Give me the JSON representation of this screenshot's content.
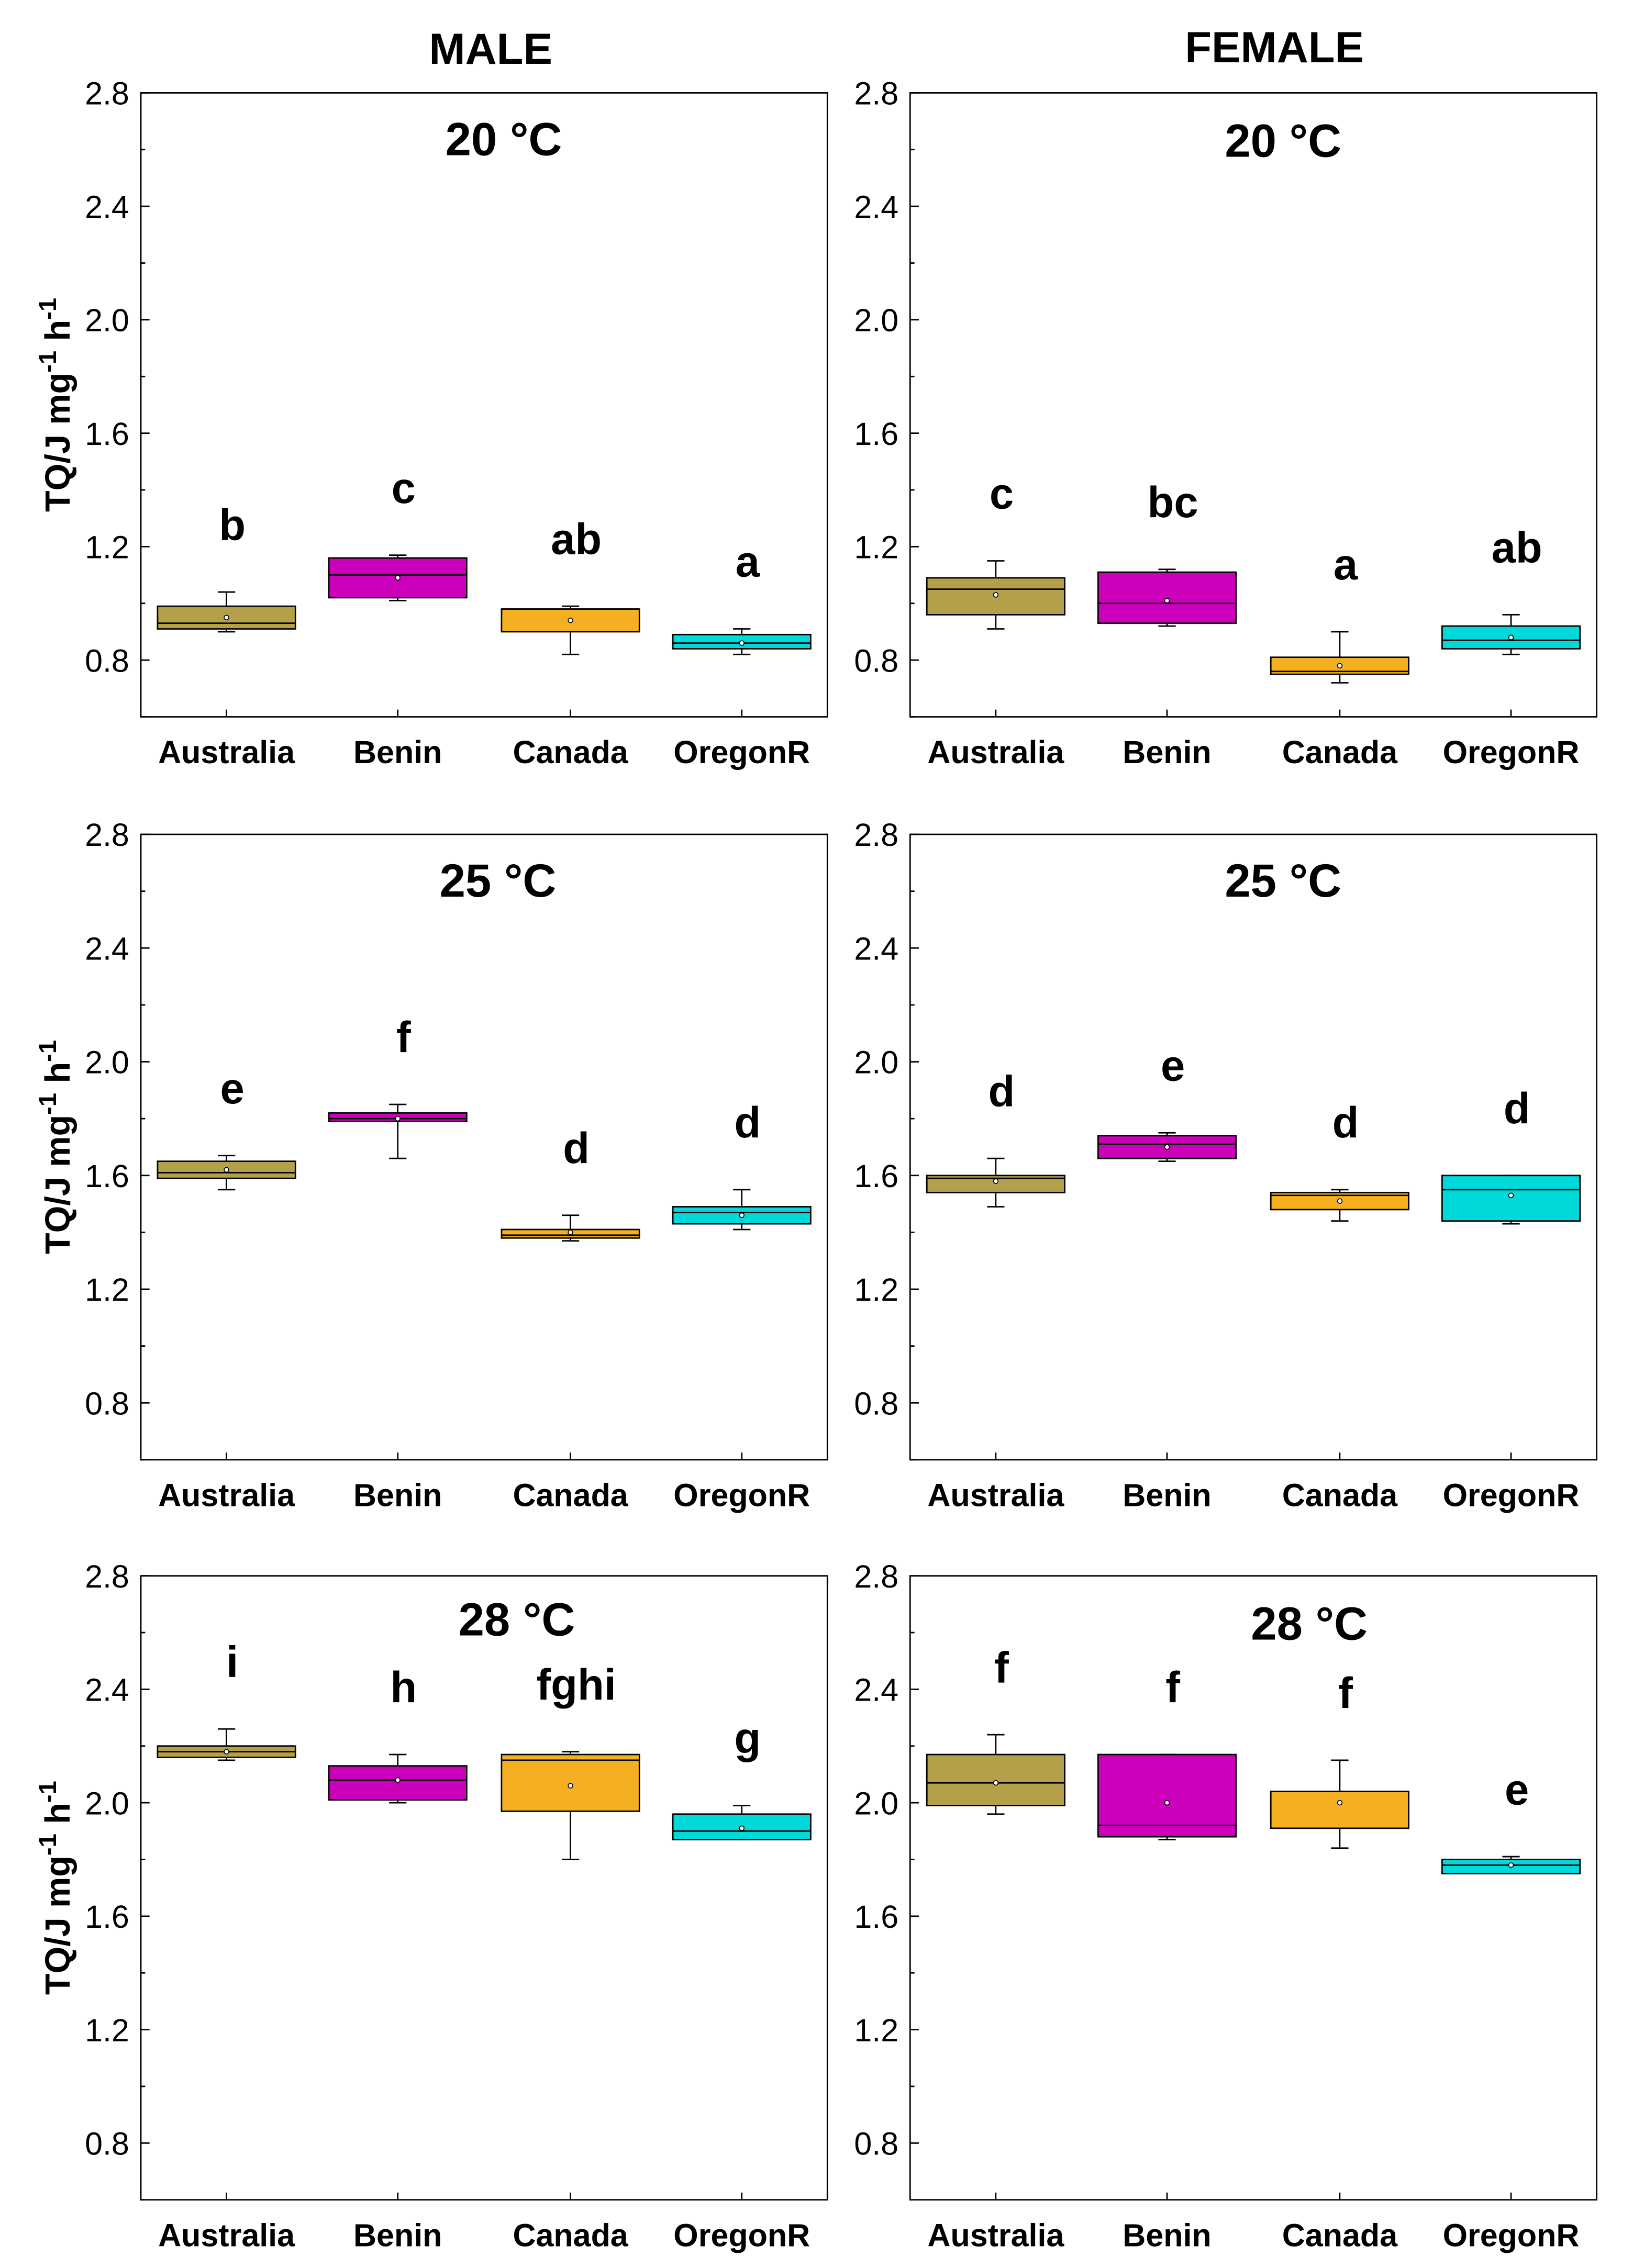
{
  "columns": [
    "MALE",
    "FEMALE"
  ],
  "colors": {
    "Australia": "#B5A04A",
    "Benin": "#CC00BB",
    "Canada": "#F5B021",
    "OregonR": "#00D9D9"
  },
  "chart_data": [
    {
      "type": "box",
      "sex": "MALE",
      "title": "20 °C",
      "ylabel": "TQ/J mg-1 h-1",
      "ylim": [
        0.6,
        2.8
      ],
      "yticks": [
        "0.8",
        "1.2",
        "1.6",
        "2.0",
        "2.4",
        "2.8"
      ],
      "categories": [
        "Australia",
        "Benin",
        "Canada",
        "OregonR"
      ],
      "boxes": [
        {
          "min": 0.9,
          "q1": 0.91,
          "median": 0.93,
          "q3": 0.99,
          "max": 1.04,
          "mean": 0.95,
          "letter": "b"
        },
        {
          "min": 1.01,
          "q1": 1.02,
          "median": 1.1,
          "q3": 1.16,
          "max": 1.17,
          "mean": 1.09,
          "letter": "c"
        },
        {
          "min": 0.82,
          "q1": 0.9,
          "median": 0.98,
          "q3": 0.98,
          "max": 0.99,
          "mean": 0.94,
          "letter": "ab"
        },
        {
          "min": 0.82,
          "q1": 0.84,
          "median": 0.86,
          "q3": 0.89,
          "max": 0.91,
          "mean": 0.86,
          "letter": "a"
        }
      ]
    },
    {
      "type": "box",
      "sex": "FEMALE",
      "title": "20 °C",
      "ylabel": "",
      "ylim": [
        0.6,
        2.8
      ],
      "yticks": [
        "0.8",
        "1.2",
        "1.6",
        "2.0",
        "2.4",
        "2.8"
      ],
      "categories": [
        "Australia",
        "Benin",
        "Canada",
        "OregonR"
      ],
      "boxes": [
        {
          "min": 0.91,
          "q1": 0.96,
          "median": 1.05,
          "q3": 1.09,
          "max": 1.15,
          "mean": 1.03,
          "letter": "c"
        },
        {
          "min": 0.92,
          "q1": 0.93,
          "median": 1.0,
          "q3": 1.11,
          "max": 1.12,
          "mean": 1.01,
          "letter": "bc"
        },
        {
          "min": 0.72,
          "q1": 0.75,
          "median": 0.76,
          "q3": 0.81,
          "max": 0.9,
          "mean": 0.78,
          "letter": "a"
        },
        {
          "min": 0.82,
          "q1": 0.84,
          "median": 0.87,
          "q3": 0.92,
          "max": 0.96,
          "mean": 0.88,
          "letter": "ab"
        }
      ]
    },
    {
      "type": "box",
      "sex": "MALE",
      "title": "25 °C",
      "ylabel": "TQ/J mg-1 h-1",
      "ylim": [
        0.6,
        2.8
      ],
      "yticks": [
        "0.8",
        "1.2",
        "1.6",
        "2.0",
        "2.4",
        "2.8"
      ],
      "categories": [
        "Australia",
        "Benin",
        "Canada",
        "OregonR"
      ],
      "boxes": [
        {
          "min": 1.55,
          "q1": 1.59,
          "median": 1.61,
          "q3": 1.65,
          "max": 1.67,
          "mean": 1.62,
          "letter": "e"
        },
        {
          "min": 1.66,
          "q1": 1.79,
          "median": 1.8,
          "q3": 1.82,
          "max": 1.85,
          "mean": 1.8,
          "letter": "f"
        },
        {
          "min": 1.37,
          "q1": 1.38,
          "median": 1.39,
          "q3": 1.41,
          "max": 1.46,
          "mean": 1.4,
          "letter": "d"
        },
        {
          "min": 1.41,
          "q1": 1.43,
          "median": 1.47,
          "q3": 1.49,
          "max": 1.55,
          "mean": 1.46,
          "letter": "d"
        }
      ]
    },
    {
      "type": "box",
      "sex": "FEMALE",
      "title": "25 °C",
      "ylabel": "",
      "ylim": [
        0.6,
        2.8
      ],
      "yticks": [
        "0.8",
        "1.2",
        "1.6",
        "2.0",
        "2.4",
        "2.8"
      ],
      "categories": [
        "Australia",
        "Benin",
        "Canada",
        "OregonR"
      ],
      "boxes": [
        {
          "min": 1.49,
          "q1": 1.54,
          "median": 1.59,
          "q3": 1.6,
          "max": 1.66,
          "mean": 1.58,
          "letter": "d"
        },
        {
          "min": 1.65,
          "q1": 1.66,
          "median": 1.71,
          "q3": 1.74,
          "max": 1.75,
          "mean": 1.7,
          "letter": "e"
        },
        {
          "min": 1.44,
          "q1": 1.48,
          "median": 1.53,
          "q3": 1.54,
          "max": 1.55,
          "mean": 1.51,
          "letter": "d"
        },
        {
          "min": 1.43,
          "q1": 1.44,
          "median": 1.55,
          "q3": 1.6,
          "max": 1.6,
          "mean": 1.53,
          "letter": "d"
        }
      ]
    },
    {
      "type": "box",
      "sex": "MALE",
      "title": "28 °C",
      "ylabel": "TQ/J mg-1 h-1",
      "ylim": [
        0.6,
        2.8
      ],
      "yticks": [
        "0.8",
        "1.2",
        "1.6",
        "2.0",
        "2.4",
        "2.8"
      ],
      "categories": [
        "Australia",
        "Benin",
        "Canada",
        "OregonR"
      ],
      "boxes": [
        {
          "min": 2.15,
          "q1": 2.16,
          "median": 2.18,
          "q3": 2.2,
          "max": 2.26,
          "mean": 2.18,
          "letter": "i"
        },
        {
          "min": 2.0,
          "q1": 2.01,
          "median": 2.08,
          "q3": 2.13,
          "max": 2.17,
          "mean": 2.08,
          "letter": "h"
        },
        {
          "min": 1.8,
          "q1": 1.97,
          "median": 2.15,
          "q3": 2.17,
          "max": 2.18,
          "mean": 2.06,
          "letter": "fghi"
        },
        {
          "min": 1.87,
          "q1": 1.87,
          "median": 1.9,
          "q3": 1.96,
          "max": 1.99,
          "mean": 1.91,
          "letter": "g"
        }
      ]
    },
    {
      "type": "box",
      "sex": "FEMALE",
      "title": "28 °C",
      "ylabel": "",
      "ylim": [
        0.6,
        2.8
      ],
      "yticks": [
        "0.8",
        "1.2",
        "1.6",
        "2.0",
        "2.4",
        "2.8"
      ],
      "categories": [
        "Australia",
        "Benin",
        "Canada",
        "OregonR"
      ],
      "boxes": [
        {
          "min": 1.96,
          "q1": 1.99,
          "median": 2.07,
          "q3": 2.17,
          "max": 2.24,
          "mean": 2.07,
          "letter": "f"
        },
        {
          "min": 1.87,
          "q1": 1.88,
          "median": 1.92,
          "q3": 2.17,
          "max": 2.17,
          "mean": 2.0,
          "letter": "f"
        },
        {
          "min": 1.84,
          "q1": 1.91,
          "median": 2.04,
          "q3": 2.04,
          "max": 2.15,
          "mean": 2.0,
          "letter": "f"
        },
        {
          "min": 1.75,
          "q1": 1.75,
          "median": 1.78,
          "q3": 1.8,
          "max": 1.81,
          "mean": 1.78,
          "letter": "e"
        }
      ]
    }
  ]
}
